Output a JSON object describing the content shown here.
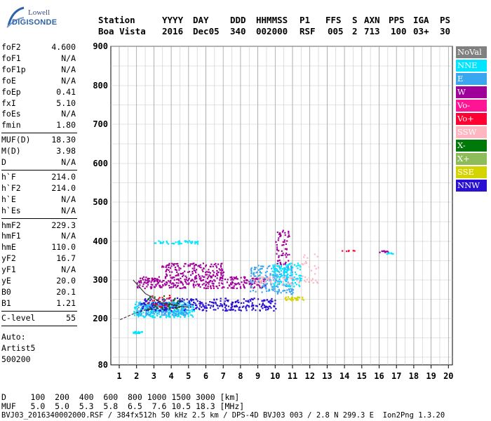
{
  "logo": {
    "line1": "Lowell",
    "line2": "DIGISONDE"
  },
  "header": {
    "labels": [
      "Station",
      "YYYY",
      "DAY",
      "DDD",
      "HHMMSS",
      "P1",
      "FFS",
      "S",
      "AXN",
      "PPS",
      "IGA",
      "PS"
    ],
    "values": [
      "Boa Vista",
      "2016",
      "Dec05",
      "340",
      "002000",
      "RSF",
      "005",
      "2",
      "713",
      "100",
      "03+",
      "30"
    ]
  },
  "params": [
    {
      "k": "foF2",
      "v": "4.600"
    },
    {
      "k": "foF1",
      "v": "N/A"
    },
    {
      "k": "foF1p",
      "v": "N/A"
    },
    {
      "k": "foE",
      "v": "N/A"
    },
    {
      "k": "foEp",
      "v": "0.41"
    },
    {
      "k": "fxI",
      "v": "5.10"
    },
    {
      "k": "foEs",
      "v": "N/A"
    },
    {
      "k": "fmin",
      "v": "1.80"
    },
    {
      "k": "MUF(D)",
      "v": "18.30"
    },
    {
      "k": "M(D)",
      "v": "3.98"
    },
    {
      "k": "D",
      "v": "N/A"
    },
    {
      "k": "h`F",
      "v": "214.0"
    },
    {
      "k": "h`F2",
      "v": "214.0"
    },
    {
      "k": "h`E",
      "v": "N/A"
    },
    {
      "k": "h`Es",
      "v": "N/A"
    },
    {
      "k": "hmF2",
      "v": "229.3"
    },
    {
      "k": "hmF1",
      "v": "N/A"
    },
    {
      "k": "hmE",
      "v": "110.0"
    },
    {
      "k": "yF2",
      "v": "16.7"
    },
    {
      "k": "yF1",
      "v": "N/A"
    },
    {
      "k": "yE",
      "v": "20.0"
    },
    {
      "k": "B0",
      "v": "20.1"
    },
    {
      "k": "B1",
      "v": "1.21"
    },
    {
      "k": "C-level",
      "v": "55"
    }
  ],
  "auto": {
    "l1": "Auto:",
    "l2": "Artist5",
    "l3": "500200"
  },
  "footer": {
    "d_line": "D     100  200  400  600  800 1000 1500 3000 [km]",
    "muf_line": "MUF   5.0  5.0  5.3  5.8  6.5  7.6 10.5 18.3 [MHz]",
    "file_line": "BVJ03_2016340002000.RSF / 384fx512h 50 kHz 2.5 km / DPS-4D BVJ03 003 / 2.8 N 299.3 E  Ion2Png 1.3.20"
  },
  "legend": [
    {
      "name": "NoVal",
      "color": "#808080",
      "text": "#ffffff"
    },
    {
      "name": "NNE",
      "color": "#00e5ff",
      "text": "#ffffff"
    },
    {
      "name": "E",
      "color": "#3aa6f0",
      "text": "#ffffff"
    },
    {
      "name": "W",
      "color": "#a0009a",
      "text": "#ffffff"
    },
    {
      "name": "Vo-",
      "color": "#ff1493",
      "text": "#ffffff"
    },
    {
      "name": "Vo+",
      "color": "#ff0033",
      "text": "#ffffff"
    },
    {
      "name": "SSW",
      "color": "#ffb6c1",
      "text": "#ffffff"
    },
    {
      "name": "X-",
      "color": "#00780a",
      "text": "#ffffff"
    },
    {
      "name": "X+",
      "color": "#8fbc5a",
      "text": "#ffffff"
    },
    {
      "name": "SSE",
      "color": "#d4d400",
      "text": "#ffffff"
    },
    {
      "name": "NNW",
      "color": "#2a10d0",
      "text": "#ffffff"
    }
  ],
  "chart_data": {
    "type": "scatter",
    "title": "",
    "xlabel": "",
    "ylabel": "",
    "xlim": [
      1,
      20
    ],
    "ylim": [
      80,
      900
    ],
    "xticks": [
      "1",
      "2",
      "3",
      "4",
      "5",
      "6",
      "7",
      "8",
      "9",
      "10",
      "11",
      "12",
      "13",
      "14",
      "15",
      "16",
      "17",
      "18",
      "19",
      "20"
    ],
    "yticks": [
      "80",
      "200",
      "300",
      "400",
      "500",
      "600",
      "700",
      "800",
      "900"
    ],
    "grid": true,
    "traces": [
      {
        "name": "F2 trace",
        "color": "#333333",
        "x": [
          1.8,
          2.5,
          3.5,
          4.5,
          5.0
        ],
        "y": [
          300,
          265,
          240,
          232,
          229
        ]
      },
      {
        "name": "profile",
        "color": "#333333",
        "x": [
          1.05,
          1.8,
          2.5,
          3.5,
          4.6
        ],
        "y": [
          197,
          212,
          222,
          228,
          229
        ]
      }
    ],
    "clusters": [
      {
        "series": "NNE",
        "x": [
          1.8,
          5.3
        ],
        "y": [
          205,
          245
        ],
        "n": 260
      },
      {
        "series": "E",
        "x": [
          2.0,
          5.0
        ],
        "y": [
          210,
          245
        ],
        "n": 200
      },
      {
        "series": "NNW",
        "x": [
          2.2,
          10.0
        ],
        "y": [
          222,
          255
        ],
        "n": 300
      },
      {
        "series": "W",
        "x": [
          2.0,
          9.5
        ],
        "y": [
          280,
          310
        ],
        "n": 320
      },
      {
        "series": "W",
        "x": [
          3.4,
          7.0
        ],
        "y": [
          310,
          345
        ],
        "n": 140
      },
      {
        "series": "E",
        "x": [
          8.5,
          11.0
        ],
        "y": [
          265,
          340
        ],
        "n": 200
      },
      {
        "series": "NNE",
        "x": [
          9.8,
          11.5
        ],
        "y": [
          285,
          345
        ],
        "n": 120
      },
      {
        "series": "SSW",
        "x": [
          8.5,
          12.5
        ],
        "y": [
          290,
          310
        ],
        "n": 60
      },
      {
        "series": "SSE",
        "x": [
          10.5,
          11.6
        ],
        "y": [
          248,
          258
        ],
        "n": 30
      },
      {
        "series": "W",
        "x": [
          10.0,
          10.8
        ],
        "y": [
          340,
          430
        ],
        "n": 60
      },
      {
        "series": "NNE",
        "x": [
          3.0,
          5.5
        ],
        "y": [
          395,
          403
        ],
        "n": 40
      },
      {
        "series": "NNE",
        "x": [
          1.75,
          2.35
        ],
        "y": [
          163,
          168
        ],
        "n": 20
      },
      {
        "series": "X-",
        "x": [
          2.5,
          4.5
        ],
        "y": [
          225,
          262
        ],
        "n": 30
      },
      {
        "series": "Vo+",
        "x": [
          2.5,
          4.0
        ],
        "y": [
          232,
          262
        ],
        "n": 25
      },
      {
        "series": "W",
        "x": [
          15.9,
          16.5
        ],
        "y": [
          372,
          378
        ],
        "n": 12
      },
      {
        "series": "NNE",
        "x": [
          16.4,
          17.0
        ],
        "y": [
          368,
          372
        ],
        "n": 8
      },
      {
        "series": "Vo+",
        "x": [
          13.8,
          14.6
        ],
        "y": [
          376,
          378
        ],
        "n": 6
      },
      {
        "series": "SSW",
        "x": [
          11.5,
          12.5
        ],
        "y": [
          305,
          372
        ],
        "n": 18
      }
    ]
  }
}
